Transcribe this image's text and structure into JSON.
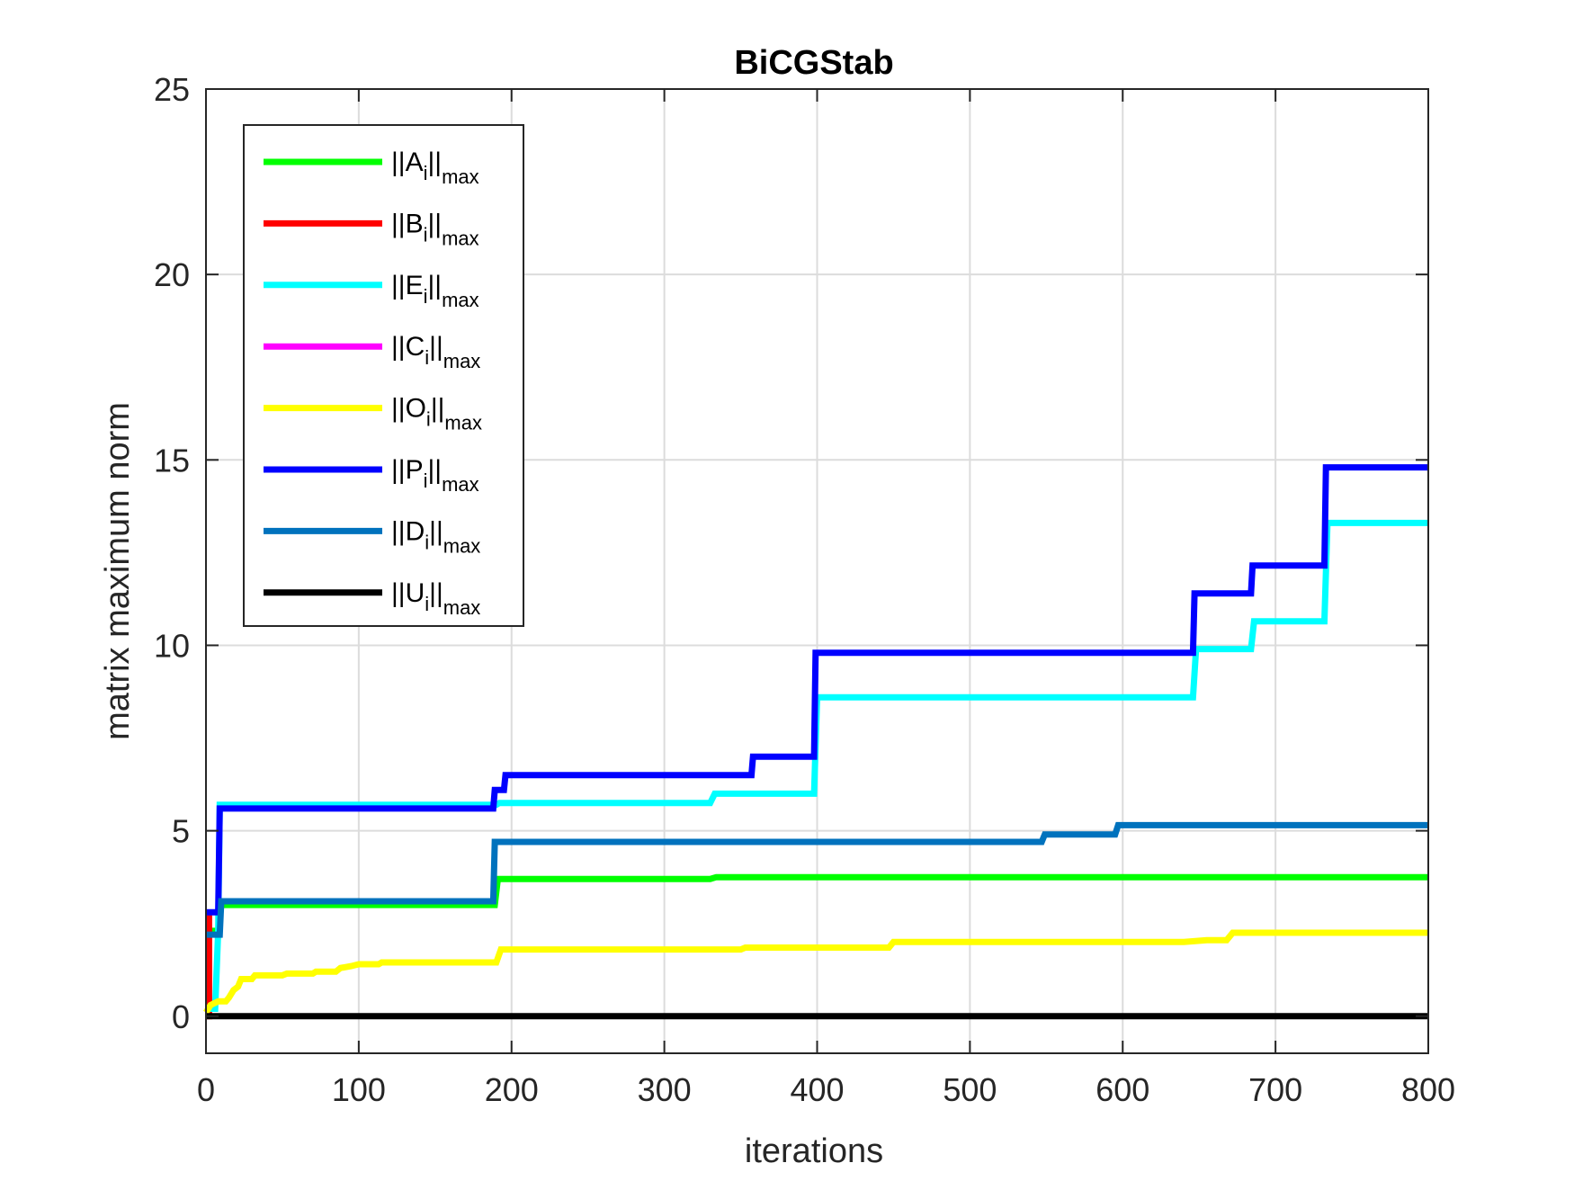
{
  "chart_data": {
    "type": "line",
    "title": "BiCGStab",
    "xlabel": "iterations",
    "ylabel": "matrix maximum norm",
    "xlim": [
      0,
      800
    ],
    "ylim": [
      -1,
      25
    ],
    "xticks": [
      0,
      100,
      200,
      300,
      400,
      500,
      600,
      700,
      800
    ],
    "yticks": [
      0,
      5,
      10,
      15,
      20,
      25
    ],
    "grid": true,
    "legend_position": "top-left",
    "series": [
      {
        "name": "||A_i||_max",
        "label_main": "||A",
        "label_sub": "i",
        "label_tail": "||",
        "label_max": "max",
        "color": "#00ff00",
        "points": [
          [
            0,
            2.3
          ],
          [
            8,
            2.3
          ],
          [
            10,
            3.0
          ],
          [
            189,
            3.0
          ],
          [
            191,
            3.7
          ],
          [
            330,
            3.7
          ],
          [
            334,
            3.75
          ],
          [
            800,
            3.75
          ]
        ]
      },
      {
        "name": "||B_i||_max",
        "label_main": "||B",
        "label_sub": "i",
        "label_tail": "||",
        "label_max": "max",
        "color": "#ff0000",
        "points": [
          [
            0,
            0
          ],
          [
            2,
            0
          ],
          [
            2,
            2.7
          ],
          [
            4,
            2.7
          ]
        ]
      },
      {
        "name": "||E_i||_max",
        "label_main": "||E",
        "label_sub": "i",
        "label_tail": "||",
        "label_max": "max",
        "color": "#00ffff",
        "points": [
          [
            0,
            0.2
          ],
          [
            6,
            0.2
          ],
          [
            8,
            2.3
          ],
          [
            9,
            5.7
          ],
          [
            190,
            5.7
          ],
          [
            192,
            5.75
          ],
          [
            330,
            5.75
          ],
          [
            333,
            6.0
          ],
          [
            398,
            6.0
          ],
          [
            400,
            8.6
          ],
          [
            646,
            8.6
          ],
          [
            648,
            9.9
          ],
          [
            684,
            9.9
          ],
          [
            686,
            10.65
          ],
          [
            732,
            10.65
          ],
          [
            734,
            13.3
          ],
          [
            800,
            13.3
          ]
        ]
      },
      {
        "name": "||C_i||_max",
        "label_main": "||C",
        "label_sub": "i",
        "label_tail": "||",
        "label_max": "max",
        "color": "#ff00ff",
        "points": []
      },
      {
        "name": "||O_i||_max",
        "label_main": "||O",
        "label_sub": "i",
        "label_tail": "||",
        "label_max": "max",
        "color": "#ffff00",
        "points": [
          [
            0,
            0.1
          ],
          [
            3,
            0.3
          ],
          [
            8,
            0.4
          ],
          [
            13,
            0.4
          ],
          [
            15,
            0.5
          ],
          [
            18,
            0.7
          ],
          [
            21,
            0.8
          ],
          [
            23,
            1.0
          ],
          [
            30,
            1.0
          ],
          [
            32,
            1.1
          ],
          [
            50,
            1.1
          ],
          [
            53,
            1.15
          ],
          [
            70,
            1.15
          ],
          [
            72,
            1.2
          ],
          [
            85,
            1.2
          ],
          [
            88,
            1.3
          ],
          [
            95,
            1.35
          ],
          [
            100,
            1.4
          ],
          [
            113,
            1.4
          ],
          [
            115,
            1.45
          ],
          [
            190,
            1.45
          ],
          [
            193,
            1.8
          ],
          [
            350,
            1.8
          ],
          [
            353,
            1.85
          ],
          [
            447,
            1.85
          ],
          [
            450,
            2.0
          ],
          [
            640,
            2.0
          ],
          [
            655,
            2.05
          ],
          [
            668,
            2.05
          ],
          [
            672,
            2.25
          ],
          [
            800,
            2.25
          ]
        ]
      },
      {
        "name": "||P_i||_max",
        "label_main": "||P",
        "label_sub": "i",
        "label_tail": "||",
        "label_max": "max",
        "color": "#0000ff",
        "points": [
          [
            0,
            2.8
          ],
          [
            8,
            2.8
          ],
          [
            9,
            5.6
          ],
          [
            188,
            5.6
          ],
          [
            189,
            6.1
          ],
          [
            195,
            6.1
          ],
          [
            196,
            6.5
          ],
          [
            357,
            6.5
          ],
          [
            358,
            7.0
          ],
          [
            398,
            7.0
          ],
          [
            399,
            9.8
          ],
          [
            646,
            9.8
          ],
          [
            647,
            11.4
          ],
          [
            684,
            11.4
          ],
          [
            685,
            12.15
          ],
          [
            732,
            12.15
          ],
          [
            733,
            14.8
          ],
          [
            800,
            14.8
          ]
        ]
      },
      {
        "name": "||D_i||_max",
        "label_main": "||D",
        "label_sub": "i",
        "label_tail": "||",
        "label_max": "max",
        "color": "#0072bd",
        "points": [
          [
            0,
            2.2
          ],
          [
            9,
            2.2
          ],
          [
            10,
            3.1
          ],
          [
            188,
            3.1
          ],
          [
            189,
            4.7
          ],
          [
            547,
            4.7
          ],
          [
            549,
            4.9
          ],
          [
            595,
            4.9
          ],
          [
            597,
            5.15
          ],
          [
            800,
            5.15
          ]
        ]
      },
      {
        "name": "||U_i||_max",
        "label_main": "||U",
        "label_sub": "i",
        "label_tail": "||",
        "label_max": "max",
        "color": "#000000",
        "points": [
          [
            0,
            0
          ],
          [
            800,
            0
          ]
        ]
      }
    ]
  }
}
